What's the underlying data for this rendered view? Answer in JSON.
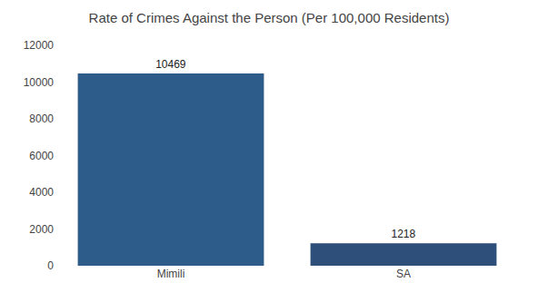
{
  "chart_data": {
    "type": "bar",
    "title": "Rate of Crimes Against the Person (Per 100,000 Residents)",
    "categories": [
      "Mimili",
      "SA"
    ],
    "values": [
      10469,
      1218
    ],
    "colors": [
      "#2e5c8a",
      "#2e4f7a"
    ],
    "ylim": [
      0,
      12000
    ],
    "yticks": [
      0,
      2000,
      4000,
      6000,
      8000,
      10000,
      12000
    ],
    "grid": false,
    "data_labels": true
  }
}
